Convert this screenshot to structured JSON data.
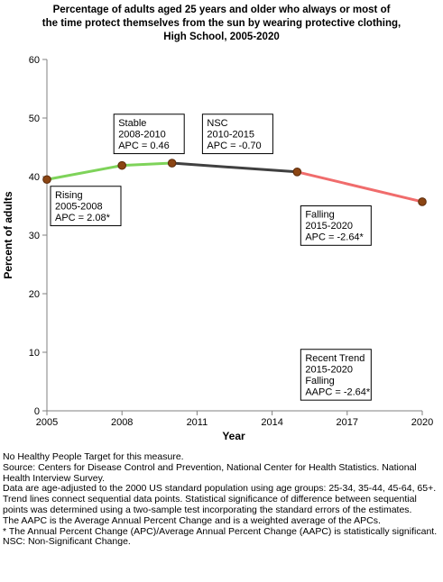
{
  "chart_data": {
    "type": "line",
    "title_lines": [
      "Percentage of adults aged 25 years and older who always or most of",
      "the time protect themselves from the sun by wearing protective clothing,",
      "High School,  2005-2020"
    ],
    "xlabel": "Year",
    "ylabel": "Percent of adults",
    "xlim": [
      2005,
      2020
    ],
    "ylim": [
      0,
      60
    ],
    "xticks": [
      2005,
      2008,
      2011,
      2014,
      2017,
      2020
    ],
    "yticks": [
      0,
      10,
      20,
      30,
      40,
      50,
      60
    ],
    "grid": false,
    "points": [
      {
        "x": 2005,
        "y": 39.5
      },
      {
        "x": 2008,
        "y": 41.9
      },
      {
        "x": 2010,
        "y": 42.3
      },
      {
        "x": 2015,
        "y": 40.8
      },
      {
        "x": 2020,
        "y": 35.7
      }
    ],
    "segments": [
      {
        "from": 2005,
        "to": 2008,
        "color": "#7ed35a",
        "label_lines": [
          "Rising",
          "2005-2008",
          "APC =  2.08*"
        ]
      },
      {
        "from": 2008,
        "to": 2010,
        "color": "#7ed35a",
        "label_lines": [
          "Stable",
          "2008-2010",
          "APC =  0.46"
        ]
      },
      {
        "from": 2010,
        "to": 2015,
        "color": "#404040",
        "label_lines": [
          "NSC",
          "2010-2015",
          "APC = -0.70"
        ]
      },
      {
        "from": 2015,
        "to": 2020,
        "color": "#f06c6c",
        "label_lines": [
          "Falling",
          "2015-2020",
          "APC = -2.64*"
        ]
      }
    ],
    "recent_trend": [
      "Recent Trend",
      "2015-2020",
      "Falling",
      "AAPC = -2.64*"
    ],
    "colors": {
      "marker_fill": "#8b4513",
      "marker_stroke": "#5a2a0a",
      "axis": "#808080"
    }
  },
  "notes": [
    "No Healthy People Target for this measure.",
    "Source: Centers for Disease Control and Prevention, National Center for Health Statistics. National Health Interview Survey.",
    "Data are age-adjusted to the 2000 US standard population using age groups: 25-34, 35-44, 45-64, 65+.",
    "Trend lines connect sequential data points. Statistical significance of difference between sequential points was determined using a two-sample test incorporating the standard errors of the estimates.",
    "The AAPC is the Average Annual Percent Change and is a weighted average of the APCs.",
    "* The Annual Percent Change (APC)/Average Annual Percent Change (AAPC) is statistically significant.",
    "NSC: Non-Significant Change."
  ]
}
